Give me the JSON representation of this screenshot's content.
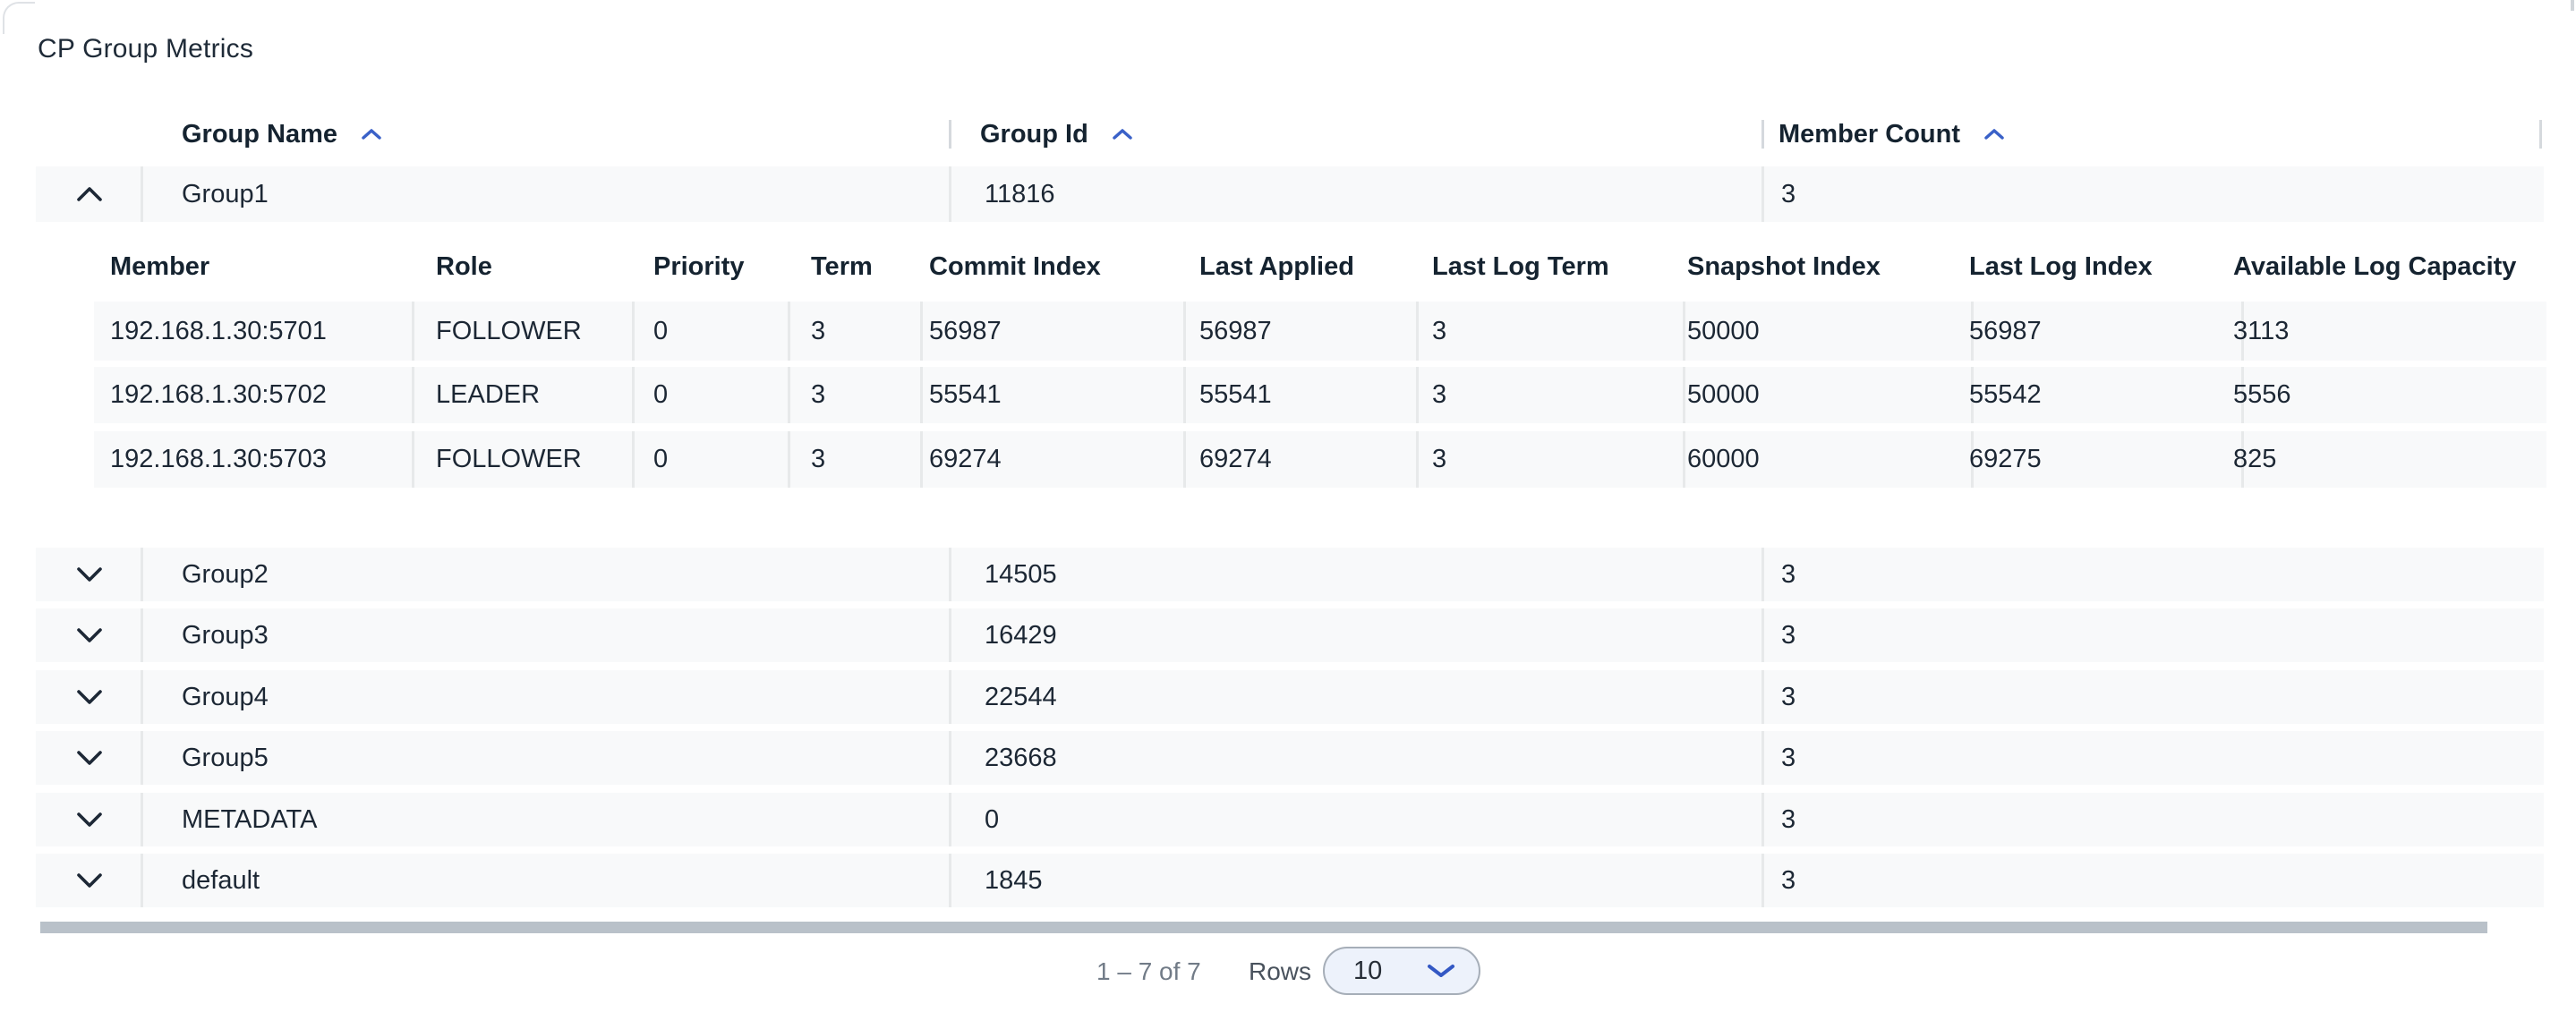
{
  "title": "CP Group Metrics",
  "colors": {
    "accent_blue": "#3a61c8",
    "text_dark": "#1c2734",
    "row_background": "#f8f9fa",
    "scrollbar_thumb": "#b9c1c9",
    "select_background": "#edf2fb"
  },
  "outer_table": {
    "columns": [
      {
        "label": "Group Name",
        "sort": "asc"
      },
      {
        "label": "Group Id",
        "sort": "asc"
      },
      {
        "label": "Member Count",
        "sort": "asc"
      }
    ],
    "rows": [
      {
        "name": "Group1",
        "id": "11816",
        "member_count": "3",
        "expanded": true
      },
      {
        "name": "Group2",
        "id": "14505",
        "member_count": "3",
        "expanded": false
      },
      {
        "name": "Group3",
        "id": "16429",
        "member_count": "3",
        "expanded": false
      },
      {
        "name": "Group4",
        "id": "22544",
        "member_count": "3",
        "expanded": false
      },
      {
        "name": "Group5",
        "id": "23668",
        "member_count": "3",
        "expanded": false
      },
      {
        "name": "METADATA",
        "id": "0",
        "member_count": "3",
        "expanded": false
      },
      {
        "name": "default",
        "id": "1845",
        "member_count": "3",
        "expanded": false
      }
    ]
  },
  "member_table": {
    "columns": [
      "Member",
      "Role",
      "Priority",
      "Term",
      "Commit Index",
      "Last Applied",
      "Last Log Term",
      "Snapshot Index",
      "Last Log Index",
      "Available Log Capacity"
    ],
    "rows": [
      [
        "192.168.1.30:5701",
        "FOLLOWER",
        "0",
        "3",
        "56987",
        "56987",
        "3",
        "50000",
        "56987",
        "3113"
      ],
      [
        "192.168.1.30:5702",
        "LEADER",
        "0",
        "3",
        "55541",
        "55541",
        "3",
        "50000",
        "55542",
        "5556"
      ],
      [
        "192.168.1.30:5703",
        "FOLLOWER",
        "0",
        "3",
        "69274",
        "69274",
        "3",
        "60000",
        "69275",
        "825"
      ]
    ]
  },
  "pagination": {
    "range_text": "1 – 7 of 7",
    "rows_label": "Rows",
    "page_size": "10"
  }
}
